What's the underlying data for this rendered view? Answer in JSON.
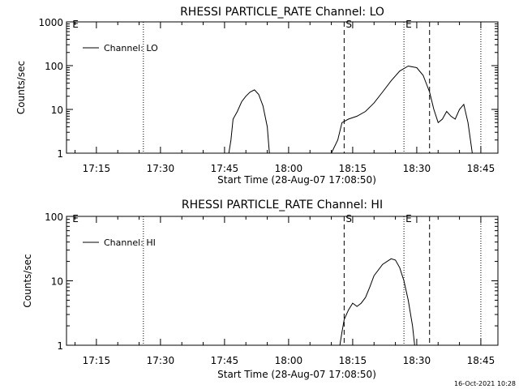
{
  "chart_data": [
    {
      "type": "line",
      "title": "RHESSI PARTICLE_RATE Channel: LO",
      "xlabel": "Start Time (28-Aug-07 17:08:50)",
      "ylabel": "Counts/sec",
      "y_scale": "log",
      "xlim": [
        "17:08",
        "18:49"
      ],
      "ylim": [
        1,
        1000
      ],
      "x_tick_labels": [
        "17:15",
        "17:30",
        "17:45",
        "18:00",
        "18:15",
        "18:30",
        "18:45"
      ],
      "y_tick_labels": [
        "1",
        "10",
        "100",
        "1000"
      ],
      "legend": "top-left",
      "series": [
        {
          "name": "Channel: LO",
          "points": [
            [
              "17:46:00",
              1
            ],
            [
              "17:46:30",
              2
            ],
            [
              "17:47:00",
              6
            ],
            [
              "17:48:00",
              9
            ],
            [
              "17:49:00",
              15
            ],
            [
              "17:50:00",
              20
            ],
            [
              "17:51:00",
              25
            ],
            [
              "17:52:00",
              28
            ],
            [
              "17:53:00",
              22
            ],
            [
              "17:54:00",
              12
            ],
            [
              "17:55:00",
              4
            ],
            [
              "17:55:30",
              1
            ]
          ]
        },
        {
          "name": "Channel: LO",
          "points": [
            [
              "18:10:00",
              1
            ],
            [
              "18:11:30",
              2
            ],
            [
              "18:12:30",
              5
            ],
            [
              "18:14:00",
              6
            ],
            [
              "18:16:00",
              7
            ],
            [
              "18:18:00",
              9
            ],
            [
              "18:20:00",
              14
            ],
            [
              "18:22:00",
              25
            ],
            [
              "18:24:00",
              45
            ],
            [
              "18:26:00",
              75
            ],
            [
              "18:28:00",
              98
            ],
            [
              "18:30:00",
              90
            ],
            [
              "18:31:30",
              60
            ],
            [
              "18:33:00",
              25
            ],
            [
              "18:34:00",
              10
            ],
            [
              "18:35:00",
              5
            ],
            [
              "18:36:00",
              6
            ],
            [
              "18:37:00",
              9
            ],
            [
              "18:38:00",
              7
            ],
            [
              "18:39:00",
              6
            ],
            [
              "18:40:00",
              10
            ],
            [
              "18:41:00",
              13
            ],
            [
              "18:42:00",
              5
            ],
            [
              "18:43:00",
              1
            ]
          ]
        }
      ],
      "markers": {
        "dotted_times": [
          "17:26",
          "18:27",
          "18:45"
        ],
        "dashed_times": [
          "18:13",
          "18:33"
        ],
        "labels": [
          {
            "text": "S",
            "time": "18:13"
          },
          {
            "text": "E",
            "time": "18:27"
          },
          {
            "text": "E",
            "time": "17:09"
          }
        ]
      }
    },
    {
      "type": "line",
      "title": "RHESSI PARTICLE_RATE Channel: HI",
      "xlabel": "Start Time (28-Aug-07 17:08:50)",
      "ylabel": "Counts/sec",
      "y_scale": "log",
      "xlim": [
        "17:08",
        "18:49"
      ],
      "ylim": [
        1,
        100
      ],
      "x_tick_labels": [
        "17:15",
        "17:30",
        "17:45",
        "18:00",
        "18:15",
        "18:30",
        "18:45"
      ],
      "y_tick_labels": [
        "1",
        "10",
        "100"
      ],
      "legend": "top-left",
      "series": [
        {
          "name": "Channel: HI",
          "points": [
            [
              "18:12:00",
              1
            ],
            [
              "18:12:30",
              1.6
            ],
            [
              "18:13:00",
              2.5
            ],
            [
              "18:14:00",
              3.5
            ],
            [
              "18:15:00",
              4.5
            ],
            [
              "18:16:00",
              4
            ],
            [
              "18:17:00",
              4.5
            ],
            [
              "18:18:00",
              5.5
            ],
            [
              "18:19:00",
              8
            ],
            [
              "18:20:00",
              12
            ],
            [
              "18:22:00",
              18
            ],
            [
              "18:24:00",
              22
            ],
            [
              "18:25:00",
              21
            ],
            [
              "18:26:00",
              16
            ],
            [
              "18:27:00",
              10
            ],
            [
              "18:28:00",
              5
            ],
            [
              "18:29:00",
              2
            ],
            [
              "18:29:30",
              1
            ]
          ]
        }
      ],
      "markers": {
        "dotted_times": [
          "17:26",
          "18:27",
          "18:45"
        ],
        "dashed_times": [
          "18:13",
          "18:33"
        ],
        "labels": [
          {
            "text": "S",
            "time": "18:13"
          },
          {
            "text": "E",
            "time": "18:27"
          },
          {
            "text": "E",
            "time": "17:09"
          }
        ]
      }
    }
  ],
  "footer": {
    "timestamp": "16-Oct-2021 10:28"
  }
}
